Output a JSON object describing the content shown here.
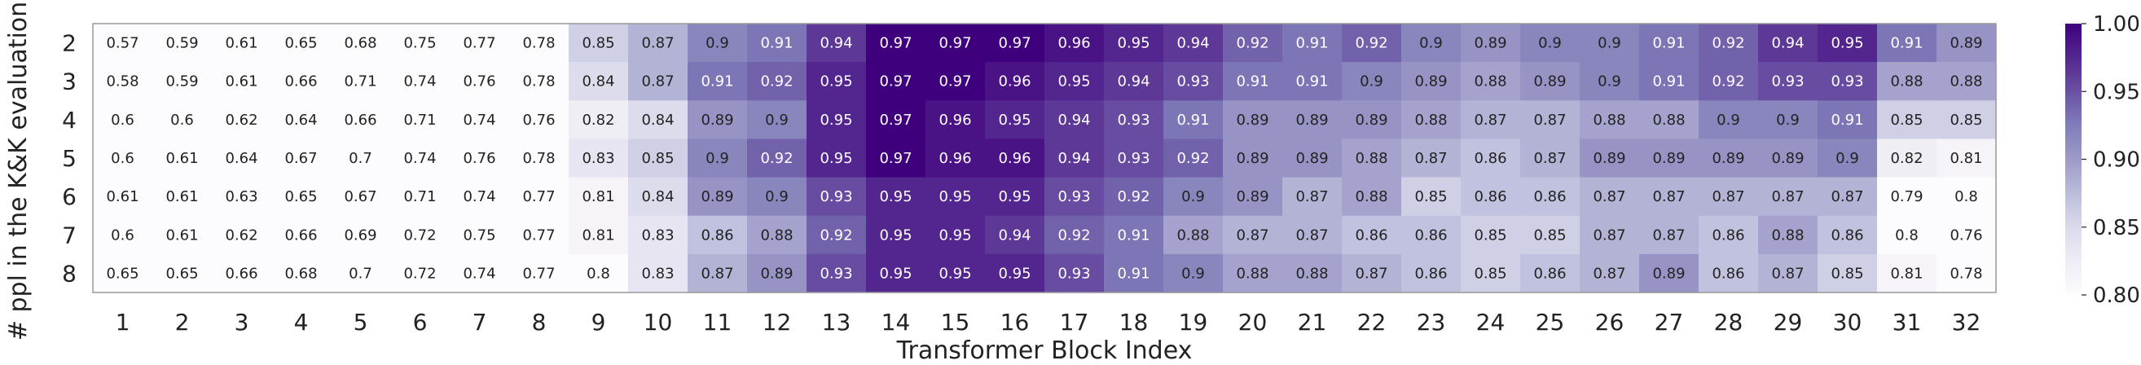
{
  "chart_data": {
    "type": "heatmap",
    "xlabel": "Transformer Block Index",
    "ylabel": "# ppl in the K&K evaluation",
    "x": [
      "1",
      "2",
      "3",
      "4",
      "5",
      "6",
      "7",
      "8",
      "9",
      "10",
      "11",
      "12",
      "13",
      "14",
      "15",
      "16",
      "17",
      "18",
      "19",
      "20",
      "21",
      "22",
      "23",
      "24",
      "25",
      "26",
      "27",
      "28",
      "29",
      "30",
      "31",
      "32"
    ],
    "y": [
      "2",
      "3",
      "4",
      "5",
      "6",
      "7",
      "8"
    ],
    "values": [
      [
        0.57,
        0.59,
        0.61,
        0.65,
        0.68,
        0.75,
        0.77,
        0.78,
        0.85,
        0.87,
        0.9,
        0.91,
        0.94,
        0.97,
        0.97,
        0.97,
        0.96,
        0.95,
        0.94,
        0.92,
        0.91,
        0.92,
        0.9,
        0.89,
        0.9,
        0.9,
        0.91,
        0.92,
        0.94,
        0.95,
        0.91,
        0.89
      ],
      [
        0.58,
        0.59,
        0.61,
        0.66,
        0.71,
        0.74,
        0.76,
        0.78,
        0.84,
        0.87,
        0.91,
        0.92,
        0.95,
        0.97,
        0.97,
        0.96,
        0.95,
        0.94,
        0.93,
        0.91,
        0.91,
        0.9,
        0.89,
        0.88,
        0.89,
        0.9,
        0.91,
        0.92,
        0.93,
        0.93,
        0.88,
        0.88
      ],
      [
        0.6,
        0.6,
        0.62,
        0.64,
        0.66,
        0.71,
        0.74,
        0.76,
        0.82,
        0.84,
        0.89,
        0.9,
        0.95,
        0.97,
        0.96,
        0.95,
        0.94,
        0.93,
        0.91,
        0.89,
        0.89,
        0.89,
        0.88,
        0.87,
        0.87,
        0.88,
        0.88,
        0.9,
        0.9,
        0.91,
        0.85,
        0.85
      ],
      [
        0.6,
        0.61,
        0.64,
        0.67,
        0.7,
        0.74,
        0.76,
        0.78,
        0.83,
        0.85,
        0.9,
        0.92,
        0.95,
        0.97,
        0.96,
        0.96,
        0.94,
        0.93,
        0.92,
        0.89,
        0.89,
        0.88,
        0.87,
        0.86,
        0.87,
        0.89,
        0.89,
        0.89,
        0.89,
        0.9,
        0.82,
        0.81
      ],
      [
        0.61,
        0.61,
        0.63,
        0.65,
        0.67,
        0.71,
        0.74,
        0.77,
        0.81,
        0.84,
        0.89,
        0.9,
        0.93,
        0.95,
        0.95,
        0.95,
        0.93,
        0.92,
        0.9,
        0.89,
        0.87,
        0.88,
        0.85,
        0.86,
        0.86,
        0.87,
        0.87,
        0.87,
        0.87,
        0.87,
        0.79,
        0.8
      ],
      [
        0.6,
        0.61,
        0.62,
        0.66,
        0.69,
        0.72,
        0.75,
        0.77,
        0.81,
        0.83,
        0.86,
        0.88,
        0.92,
        0.95,
        0.95,
        0.94,
        0.92,
        0.91,
        0.88,
        0.87,
        0.87,
        0.86,
        0.86,
        0.85,
        0.85,
        0.87,
        0.87,
        0.86,
        0.88,
        0.86,
        0.8,
        0.76
      ],
      [
        0.65,
        0.65,
        0.66,
        0.68,
        0.7,
        0.72,
        0.74,
        0.77,
        0.8,
        0.83,
        0.87,
        0.89,
        0.93,
        0.95,
        0.95,
        0.95,
        0.93,
        0.91,
        0.9,
        0.88,
        0.88,
        0.87,
        0.86,
        0.85,
        0.86,
        0.87,
        0.89,
        0.86,
        0.87,
        0.85,
        0.81,
        0.78
      ]
    ],
    "colorbar": {
      "min": 0.8,
      "max": 0.97,
      "ticks": [
        "0.80",
        "0.85",
        "0.90",
        "0.95",
        "1.00"
      ],
      "colormap": "Purples"
    },
    "colors": {
      "low": "#fcfbfd",
      "high": "#3f007d",
      "annotation_dark": "#222222",
      "annotation_light": "#ffffff"
    }
  }
}
